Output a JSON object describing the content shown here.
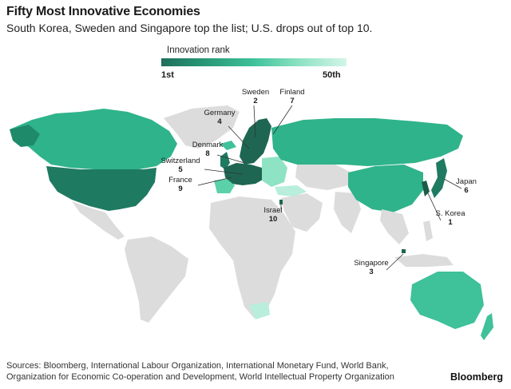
{
  "header": {
    "title": "Fifty Most Innovative Economies",
    "subtitle": "South Korea, Sweden and Singapore top the list; U.S. drops out of top 10."
  },
  "legend": {
    "title": "Innovation rank",
    "min_label": "1st",
    "max_label": "50th",
    "color_high_rank": "#1e6f5c",
    "color_low_rank": "#d4f5e8"
  },
  "colors": {
    "unranked_land": "#dcdcdc",
    "ocean": "#ffffff",
    "leader_line": "#333333"
  },
  "callouts": [
    {
      "name": "Sweden",
      "rank": "2"
    },
    {
      "name": "Finland",
      "rank": "7"
    },
    {
      "name": "Germany",
      "rank": "4"
    },
    {
      "name": "Denmark",
      "rank": "8"
    },
    {
      "name": "Switzerland",
      "rank": "5"
    },
    {
      "name": "France",
      "rank": "9"
    },
    {
      "name": "Israel",
      "rank": "10"
    },
    {
      "name": "Japan",
      "rank": "6"
    },
    {
      "name": "S. Korea",
      "rank": "1"
    },
    {
      "name": "Singapore",
      "rank": "3"
    }
  ],
  "footer": {
    "sources_line1": "Sources: Bloomberg, International Labour Organization, International Monetary Fund, World Bank,",
    "sources_line2": "Organization for Economic Co-operation and Development, World Intellectual Property Organization",
    "brand": "Bloomberg"
  }
}
